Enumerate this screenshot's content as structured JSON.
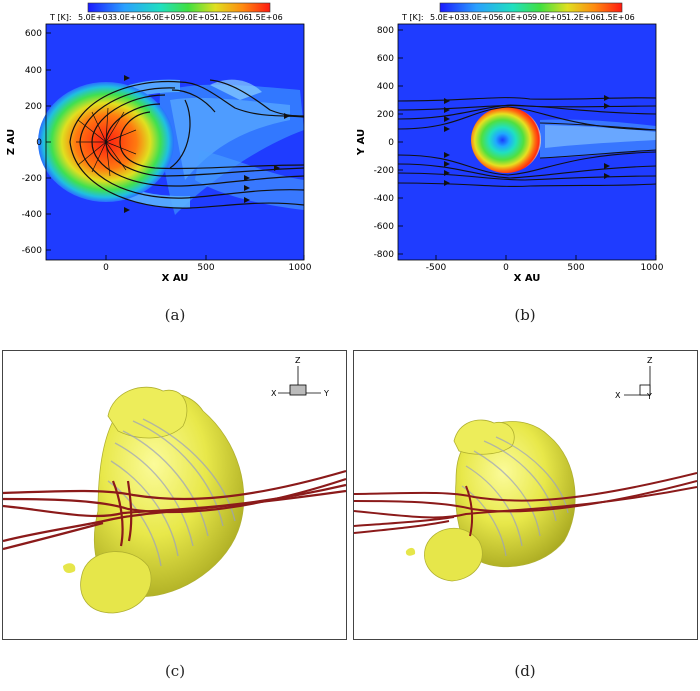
{
  "panel_a": {
    "colorbar_label": "T [K]:",
    "colorbar_ticks": [
      "5.0E+03",
      "3.0E+05",
      "6.0E+05",
      "9.0E+05",
      "1.2E+06",
      "1.5E+06"
    ],
    "xlabel": "X AU",
    "ylabel": "Z AU",
    "xticks": [
      "0",
      "500",
      "1000"
    ],
    "yticks": [
      "600",
      "400",
      "200",
      "0",
      "-200",
      "-400",
      "-600"
    ],
    "caption": "(a)"
  },
  "panel_b": {
    "colorbar_label": "T [K]:",
    "colorbar_ticks": [
      "5.0E+03",
      "3.0E+05",
      "6.0E+05",
      "9.0E+05",
      "1.2E+06",
      "1.5E+06"
    ],
    "xlabel": "X AU",
    "ylabel": "Y AU",
    "xticks": [
      "-500",
      "0",
      "500",
      "1000"
    ],
    "yticks": [
      "800",
      "600",
      "400",
      "200",
      "0",
      "-200",
      "-400",
      "-600",
      "-800"
    ],
    "caption": "(b)"
  },
  "panel_c": {
    "axes": {
      "z": "Z",
      "x": "X",
      "y": "Y"
    },
    "caption": "(c)"
  },
  "panel_d": {
    "axes": {
      "z": "Z",
      "x": "X",
      "y": "Y"
    },
    "caption": "(d)"
  },
  "colors": {
    "background_field": "#1f3cff",
    "streamline": "#111111",
    "isosurface": "#e6e64a",
    "field_lines": "#8b1a1a"
  }
}
